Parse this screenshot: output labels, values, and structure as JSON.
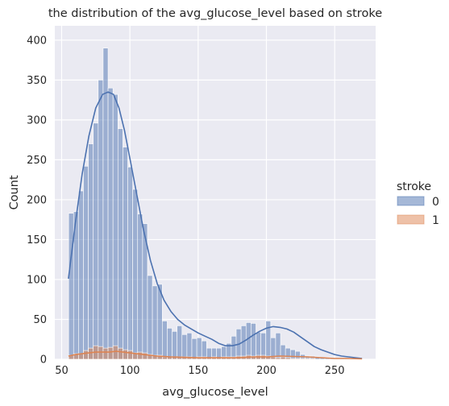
{
  "chart_data": {
    "type": "histogram",
    "title": "the distribution of the avg_glucose_level based on stroke",
    "xlabel": "avg_glucose_level",
    "ylabel": "Count",
    "xlim": [
      45,
      280
    ],
    "ylim": [
      0,
      418
    ],
    "xticks": [
      50,
      100,
      150,
      200,
      250
    ],
    "yticks": [
      0,
      50,
      100,
      150,
      200,
      250,
      300,
      350,
      400
    ],
    "grid": true,
    "legend": {
      "title": "stroke",
      "placement": "right",
      "entries": [
        "0",
        "1"
      ]
    },
    "bin_start": 55.12,
    "bin_width": 3.61,
    "series": [
      {
        "name": "0",
        "color": "#4c72b0",
        "values": [
          183,
          185,
          211,
          242,
          270,
          296,
          350,
          390,
          340,
          332,
          289,
          266,
          241,
          213,
          182,
          170,
          105,
          92,
          94,
          48,
          39,
          35,
          42,
          31,
          33,
          26,
          27,
          23,
          14,
          14,
          14,
          16,
          20,
          29,
          38,
          42,
          46,
          45,
          34,
          33,
          48,
          27,
          33,
          18,
          14,
          12,
          10,
          6,
          4,
          4,
          3,
          2,
          2,
          2,
          1,
          1,
          1,
          0,
          0,
          0
        ],
        "kde": [
          [
            55,
            101
          ],
          [
            60,
            170
          ],
          [
            65,
            232
          ],
          [
            70,
            280
          ],
          [
            75,
            315
          ],
          [
            80,
            332
          ],
          [
            84,
            335
          ],
          [
            88,
            332
          ],
          [
            92,
            315
          ],
          [
            96,
            287
          ],
          [
            100,
            252
          ],
          [
            105,
            207
          ],
          [
            110,
            162
          ],
          [
            115,
            124
          ],
          [
            120,
            95
          ],
          [
            125,
            74
          ],
          [
            130,
            60
          ],
          [
            135,
            50
          ],
          [
            140,
            43
          ],
          [
            145,
            38
          ],
          [
            150,
            33
          ],
          [
            155,
            29
          ],
          [
            160,
            25
          ],
          [
            165,
            20
          ],
          [
            170,
            17
          ],
          [
            175,
            17
          ],
          [
            180,
            19
          ],
          [
            185,
            24
          ],
          [
            190,
            30
          ],
          [
            195,
            35
          ],
          [
            200,
            39
          ],
          [
            205,
            41
          ],
          [
            210,
            40
          ],
          [
            215,
            38
          ],
          [
            220,
            34
          ],
          [
            225,
            28
          ],
          [
            230,
            22
          ],
          [
            235,
            16
          ],
          [
            240,
            12
          ],
          [
            245,
            9
          ],
          [
            250,
            6
          ],
          [
            255,
            4
          ],
          [
            260,
            3
          ],
          [
            265,
            2
          ],
          [
            270,
            1
          ]
        ]
      },
      {
        "name": "1",
        "color": "#dd8452",
        "values": [
          5,
          7,
          7,
          11,
          14,
          17,
          16,
          14,
          15,
          17,
          14,
          12,
          11,
          8,
          9,
          8,
          6,
          5,
          5,
          3,
          3,
          3,
          3,
          3,
          3,
          2,
          3,
          3,
          2,
          3,
          2,
          3,
          3,
          3,
          4,
          4,
          5,
          4,
          5,
          5,
          4,
          3,
          2,
          3,
          2,
          1,
          1,
          1,
          1,
          1,
          0,
          0,
          0,
          0,
          0,
          0,
          0,
          0,
          0,
          0
        ],
        "kde": [
          [
            55,
            4
          ],
          [
            60,
            6
          ],
          [
            65,
            7
          ],
          [
            70,
            8
          ],
          [
            75,
            9
          ],
          [
            80,
            9
          ],
          [
            85,
            9
          ],
          [
            90,
            10
          ],
          [
            95,
            9
          ],
          [
            100,
            8
          ],
          [
            105,
            7
          ],
          [
            110,
            6
          ],
          [
            115,
            5
          ],
          [
            120,
            4
          ],
          [
            130,
            3
          ],
          [
            140,
            2.5
          ],
          [
            150,
            2
          ],
          [
            160,
            2
          ],
          [
            170,
            2
          ],
          [
            180,
            2
          ],
          [
            190,
            3
          ],
          [
            200,
            3
          ],
          [
            210,
            4
          ],
          [
            220,
            3.5
          ],
          [
            230,
            3
          ],
          [
            240,
            2
          ],
          [
            250,
            1
          ],
          [
            260,
            1
          ],
          [
            270,
            0.5
          ]
        ]
      }
    ]
  }
}
